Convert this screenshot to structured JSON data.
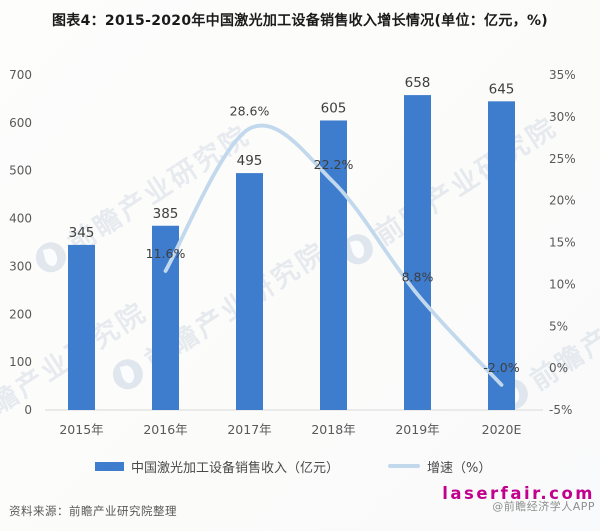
{
  "title": "图表4：2015-2020年中国激光加工设备销售收入增长情况(单位：亿元，%)",
  "watermark": {
    "text": "前瞻产业研究院"
  },
  "chart_data": {
    "type": "bar",
    "subtype": "bar+line combo, dual axis",
    "title": "图表4：2015-2020年中国激光加工设备销售收入增长情况(单位：亿元，%)",
    "categories": [
      "2015年",
      "2016年",
      "2017年",
      "2018年",
      "2019年",
      "2020E"
    ],
    "series": [
      {
        "name": "中国激光加工设备销售收入（亿元）",
        "type": "bar",
        "axis": "left",
        "color": "#3e7cce",
        "values": [
          345,
          385,
          495,
          605,
          658,
          645
        ],
        "value_labels": [
          "345",
          "385",
          "495",
          "605",
          "658",
          "645"
        ]
      },
      {
        "name": "增速（%）",
        "type": "line",
        "axis": "right",
        "color": "#c2d8ec",
        "smooth": true,
        "values": [
          null,
          11.6,
          28.6,
          22.2,
          8.8,
          -2.0
        ],
        "point_labels": [
          "",
          "11.6%",
          "28.6%",
          "22.2%",
          "8.8%",
          "-2.0%"
        ]
      }
    ],
    "left_axis": {
      "min": 0,
      "max": 700,
      "step": 100,
      "ticks": [
        "0",
        "100",
        "200",
        "300",
        "400",
        "500",
        "600",
        "700"
      ]
    },
    "right_axis": {
      "min": -5,
      "max": 35,
      "step": 5,
      "ticks": [
        "-5%",
        "0%",
        "5%",
        "10%",
        "15%",
        "20%",
        "25%",
        "30%",
        "35%"
      ]
    },
    "grid": false,
    "legend_position": "bottom"
  },
  "legend": {
    "bar_label": "中国激光加工设备销售收入（亿元）",
    "line_label": "增速（%）"
  },
  "footer": {
    "source": "资料来源：前瞻产业研究院整理",
    "site": "laserfair.com",
    "app": "@前瞻经济学人APP"
  }
}
